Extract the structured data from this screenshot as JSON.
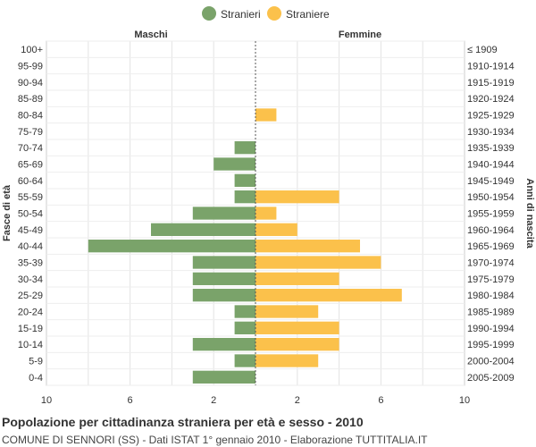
{
  "chart_data": {
    "type": "bar",
    "orientation": "horizontal",
    "pyramid": true,
    "legend": {
      "position": "top",
      "entries": [
        "Stranieri",
        "Straniere"
      ]
    },
    "left_header": "Maschi",
    "right_header": "Femmine",
    "ylabel_left": "Fasce di età",
    "ylabel_right": "Anni di nascita",
    "age_groups": [
      "100+",
      "95-99",
      "90-94",
      "85-89",
      "80-84",
      "75-79",
      "70-74",
      "65-69",
      "60-64",
      "55-59",
      "50-54",
      "45-49",
      "40-44",
      "35-39",
      "30-34",
      "25-29",
      "20-24",
      "15-19",
      "10-14",
      "5-9",
      "0-4"
    ],
    "birth_years": [
      "≤ 1909",
      "1910-1914",
      "1915-1919",
      "1920-1924",
      "1925-1929",
      "1930-1934",
      "1935-1939",
      "1940-1944",
      "1945-1949",
      "1950-1954",
      "1955-1959",
      "1960-1964",
      "1965-1969",
      "1970-1974",
      "1975-1979",
      "1980-1984",
      "1985-1989",
      "1990-1994",
      "1995-1999",
      "2000-2004",
      "2005-2009"
    ],
    "series": [
      {
        "name": "Stranieri",
        "side": "left",
        "color": "#7aa36a",
        "values": [
          0,
          0,
          0,
          0,
          0,
          0,
          1,
          2,
          1,
          1,
          3,
          5,
          8,
          3,
          3,
          3,
          1,
          1,
          3,
          1,
          3
        ]
      },
      {
        "name": "Straniere",
        "side": "right",
        "color": "#fbc14b",
        "values": [
          0,
          0,
          0,
          0,
          1,
          0,
          0,
          0,
          0,
          4,
          1,
          2,
          5,
          6,
          4,
          7,
          3,
          4,
          4,
          3,
          0
        ]
      }
    ],
    "xlim": [
      -10,
      10
    ],
    "x_tick_labels": [
      "10",
      "6",
      "2",
      "2",
      "6",
      "10"
    ],
    "x_tick_values": [
      -10,
      -6,
      -2,
      2,
      6,
      10
    ],
    "grid": true
  },
  "footer": {
    "title": "Popolazione per cittadinanza straniera per età e sesso - 2010",
    "subtitle": "COMUNE DI SENNORI (SS) - Dati ISTAT 1° gennaio 2010 - Elaborazione TUTTITALIA.IT"
  }
}
